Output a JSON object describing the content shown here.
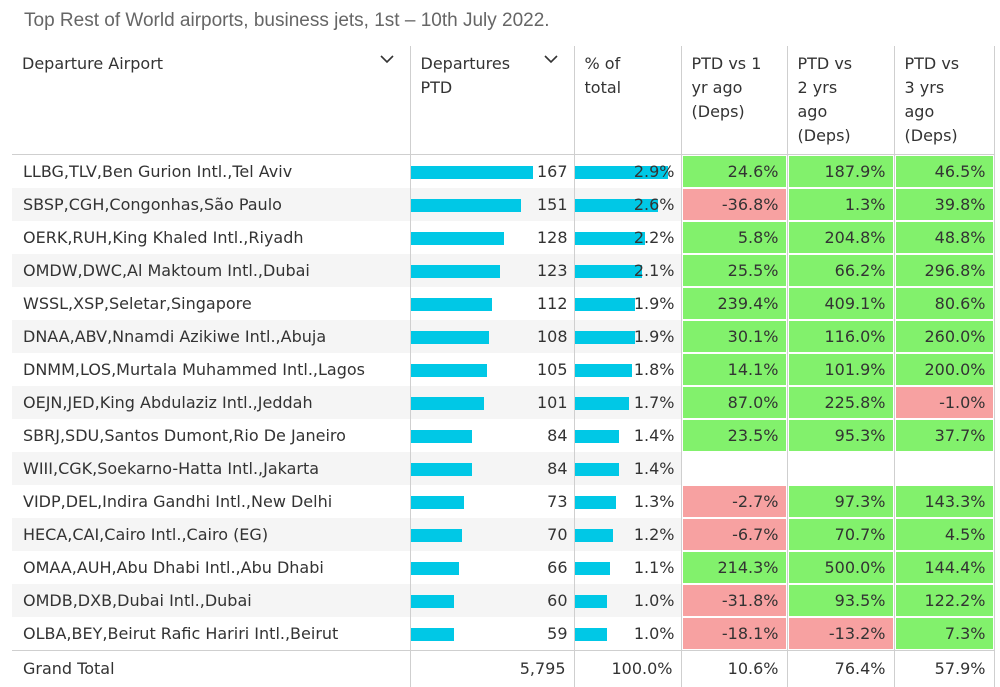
{
  "title": "Top Rest of World airports, business jets, 1st – 10th July 2022.",
  "columns": {
    "airport": "Departure Airport",
    "departures": "Departures PTD",
    "pct": "% of total",
    "vs1": "PTD vs 1 yr ago (Deps)",
    "vs2": "PTD vs 2 yrs ago (Deps)",
    "vs3": "PTD vs 3 yrs ago (Deps)"
  },
  "colors": {
    "bar": "#00c8e6",
    "positive": "#82f16c",
    "negative": "#f7a1a1"
  },
  "chart_data": {
    "type": "table",
    "rows": [
      {
        "airport": "LLBG,TLV,Ben Gurion Intl.,Tel Aviv",
        "departures": "167",
        "pct": "2.9%",
        "vs1": "24.6%",
        "vs2": "187.9%",
        "vs3": "46.5%"
      },
      {
        "airport": "SBSP,CGH,Congonhas,São Paulo",
        "departures": "151",
        "pct": "2.6%",
        "vs1": "-36.8%",
        "vs2": "1.3%",
        "vs3": "39.8%"
      },
      {
        "airport": "OERK,RUH,King Khaled Intl.,Riyadh",
        "departures": "128",
        "pct": "2.2%",
        "vs1": "5.8%",
        "vs2": "204.8%",
        "vs3": "48.8%"
      },
      {
        "airport": "OMDW,DWC,Al Maktoum Intl.,Dubai",
        "departures": "123",
        "pct": "2.1%",
        "vs1": "25.5%",
        "vs2": "66.2%",
        "vs3": "296.8%"
      },
      {
        "airport": "WSSL,XSP,Seletar,Singapore",
        "departures": "112",
        "pct": "1.9%",
        "vs1": "239.4%",
        "vs2": "409.1%",
        "vs3": "80.6%"
      },
      {
        "airport": "DNAA,ABV,Nnamdi Azikiwe Intl.,Abuja",
        "departures": "108",
        "pct": "1.9%",
        "vs1": "30.1%",
        "vs2": "116.0%",
        "vs3": "260.0%"
      },
      {
        "airport": "DNMM,LOS,Murtala Muhammed Intl.,Lagos",
        "departures": "105",
        "pct": "1.8%",
        "vs1": "14.1%",
        "vs2": "101.9%",
        "vs3": "200.0%"
      },
      {
        "airport": "OEJN,JED,King Abdulaziz Intl.,Jeddah",
        "departures": "101",
        "pct": "1.7%",
        "vs1": "87.0%",
        "vs2": "225.8%",
        "vs3": "-1.0%"
      },
      {
        "airport": "SBRJ,SDU,Santos Dumont,Rio De Janeiro",
        "departures": "84",
        "pct": "1.4%",
        "vs1": "23.5%",
        "vs2": "95.3%",
        "vs3": "37.7%"
      },
      {
        "airport": "WIII,CGK,Soekarno-Hatta Intl.,Jakarta",
        "departures": "84",
        "pct": "1.4%",
        "vs1": "",
        "vs2": "",
        "vs3": ""
      },
      {
        "airport": "VIDP,DEL,Indira Gandhi Intl.,New Delhi",
        "departures": "73",
        "pct": "1.3%",
        "vs1": "-2.7%",
        "vs2": "97.3%",
        "vs3": "143.3%"
      },
      {
        "airport": "HECA,CAI,Cairo Intl.,Cairo (EG)",
        "departures": "70",
        "pct": "1.2%",
        "vs1": "-6.7%",
        "vs2": "70.7%",
        "vs3": "4.5%"
      },
      {
        "airport": "OMAA,AUH,Abu Dhabi Intl.,Abu Dhabi",
        "departures": "66",
        "pct": "1.1%",
        "vs1": "214.3%",
        "vs2": "500.0%",
        "vs3": "144.4%"
      },
      {
        "airport": "OMDB,DXB,Dubai Intl.,Dubai",
        "departures": "60",
        "pct": "1.0%",
        "vs1": "-31.8%",
        "vs2": "93.5%",
        "vs3": "122.2%"
      },
      {
        "airport": "OLBA,BEY,Beirut Rafic Hariri Intl.,Beirut",
        "departures": "59",
        "pct": "1.0%",
        "vs1": "-18.1%",
        "vs2": "-13.2%",
        "vs3": "7.3%"
      }
    ],
    "total": {
      "airport": "Grand Total",
      "departures": "5,795",
      "pct": "100.0%",
      "vs1": "10.6%",
      "vs2": "76.4%",
      "vs3": "57.9%"
    }
  }
}
